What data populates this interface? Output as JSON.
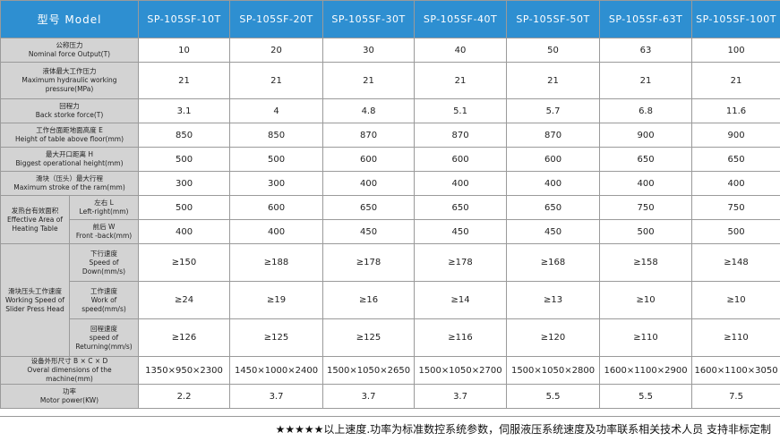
{
  "header": {
    "model_label": "型号 Model",
    "models": [
      "SP-105SF-10T",
      "SP-105SF-20T",
      "SP-105SF-30T",
      "SP-105SF-40T",
      "SP-105SF-50T",
      "SP-105SF-63T",
      "SP-105SF-100T"
    ]
  },
  "rows": [
    {
      "label": [
        "公称压力",
        "Nominal force Output(T)"
      ],
      "values": [
        "10",
        "20",
        "30",
        "40",
        "50",
        "63",
        "100"
      ]
    },
    {
      "label": [
        "液体最大工作压力",
        "Maximum hydraulic working",
        "pressure(MPa)"
      ],
      "values": [
        "21",
        "21",
        "21",
        "21",
        "21",
        "21",
        "21"
      ]
    },
    {
      "label": [
        "回程力",
        "Back storke force(T)"
      ],
      "values": [
        "3.1",
        "4",
        "4.8",
        "5.1",
        "5.7",
        "6.8",
        "11.6"
      ]
    },
    {
      "label": [
        "工作台面距地面高度 E",
        "Height of table above floor(mm)"
      ],
      "values": [
        "850",
        "850",
        "870",
        "870",
        "870",
        "900",
        "900"
      ]
    },
    {
      "label": [
        "最大开口距离 H",
        "Biggest operational height(mm)"
      ],
      "values": [
        "500",
        "500",
        "600",
        "600",
        "600",
        "650",
        "650"
      ]
    },
    {
      "label": [
        "滑块（压头）最大行程",
        "Maximum stroke of the ram(mm)"
      ],
      "values": [
        "300",
        "300",
        "400",
        "400",
        "400",
        "400",
        "400"
      ]
    }
  ],
  "heating": {
    "group_label": [
      "发热台有效面积",
      "Effective Area of",
      "Heating Table"
    ],
    "rows": [
      {
        "label": [
          "左右 L",
          "Left-right(mm)"
        ],
        "values": [
          "500",
          "600",
          "650",
          "650",
          "650",
          "750",
          "750"
        ]
      },
      {
        "label": [
          "前后 W",
          "Front -back(mm)"
        ],
        "values": [
          "400",
          "400",
          "450",
          "450",
          "450",
          "500",
          "500"
        ]
      }
    ]
  },
  "speed": {
    "group_label": [
      "滑块压头工作速度",
      "Working Speed of",
      "Slider Press Head"
    ],
    "rows": [
      {
        "label": [
          "下行速度",
          "Speed of",
          "Down(mm/s)"
        ],
        "values": [
          "≥150",
          "≥188",
          "≥178",
          "≥178",
          "≥168",
          "≥158",
          "≥148"
        ]
      },
      {
        "label": [
          "工作速度",
          "Work of",
          "speed(mm/s)"
        ],
        "values": [
          "≥24",
          "≥19",
          "≥16",
          "≥14",
          "≥13",
          "≥10",
          "≥10"
        ]
      },
      {
        "label": [
          "回程速度",
          "speed of",
          "Returning(mm/s)"
        ],
        "values": [
          "≥126",
          "≥125",
          "≥125",
          "≥116",
          "≥120",
          "≥110",
          "≥110"
        ]
      }
    ]
  },
  "rows_bottom": [
    {
      "label": [
        "设备外形尺寸 B × C × D",
        "Overal dimensions of the",
        "machine(mm)"
      ],
      "values": [
        "1350×950×2300",
        "1450×1000×2400",
        "1500×1050×2650",
        "1500×1050×2700",
        "1500×1050×2800",
        "1600×1100×2900",
        "1600×1100×3050"
      ]
    },
    {
      "label": [
        "功率",
        "Motor power(KW)"
      ],
      "values": [
        "2.2",
        "3.7",
        "3.7",
        "3.7",
        "5.5",
        "5.5",
        "7.5"
      ]
    }
  ],
  "footer_note": "★★★★★以上速度.功率为标准数控系统参数，伺服液压系统速度及功率联系相关技术人员   支持非标定制",
  "colors": {
    "header_bg": "#2e8fd1",
    "label_bg": "#d3d3d3",
    "border": "#9a9a9a"
  }
}
